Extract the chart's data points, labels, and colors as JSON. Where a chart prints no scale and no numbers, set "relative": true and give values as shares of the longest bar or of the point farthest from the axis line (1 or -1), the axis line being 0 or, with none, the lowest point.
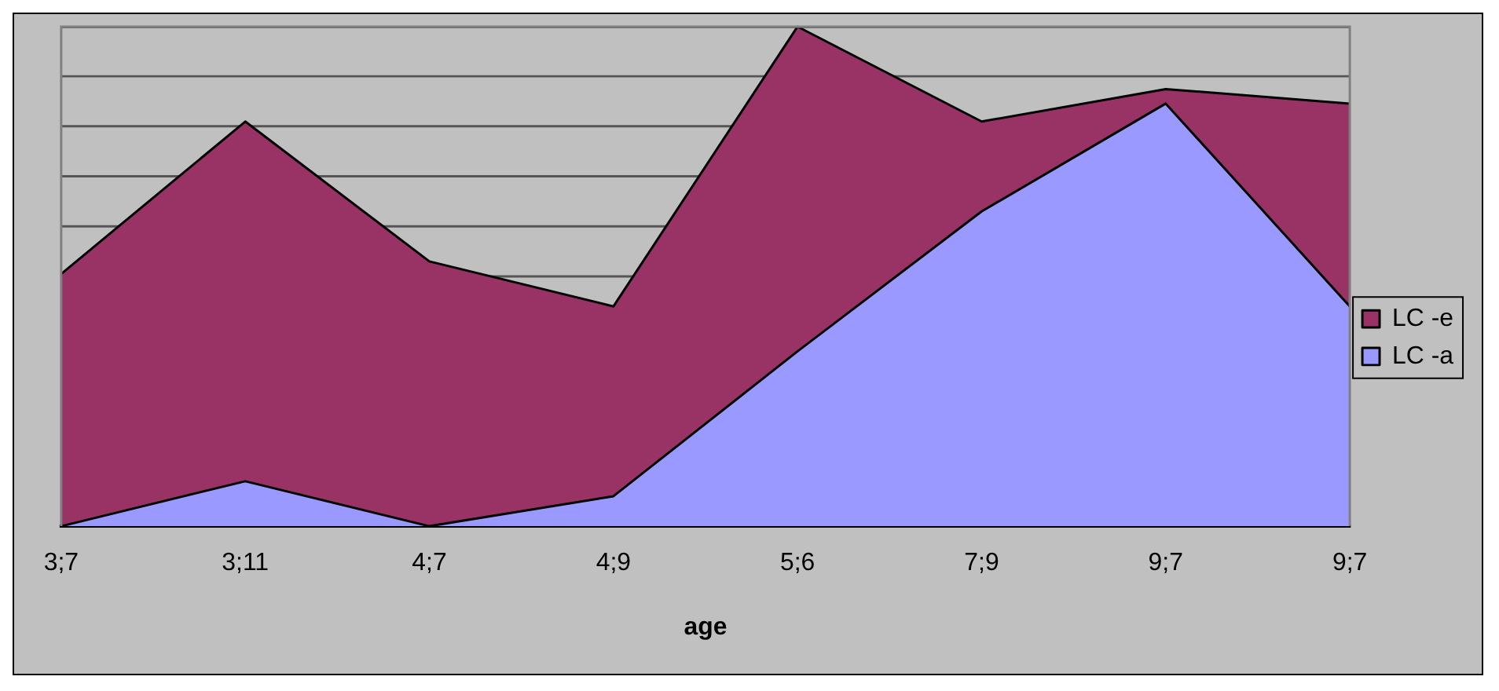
{
  "chart_data": {
    "type": "area",
    "relative": true,
    "xlabel": "age",
    "categories": [
      "3;7",
      "3;11",
      "4;7",
      "4;9",
      "5;6",
      "7;9",
      "9;7",
      "9;7"
    ],
    "series": [
      {
        "name": "LC -e",
        "color": "#993366",
        "values": [
          0.505,
          0.81,
          0.53,
          0.44,
          1,
          0.81,
          0.875,
          0.846
        ]
      },
      {
        "name": "LC -a",
        "color": "#9999ff",
        "values": [
          0,
          0.09,
          0,
          0.06,
          0.35,
          0.63,
          0.846,
          0.44
        ]
      }
    ],
    "grid": "y",
    "legend": "right"
  }
}
